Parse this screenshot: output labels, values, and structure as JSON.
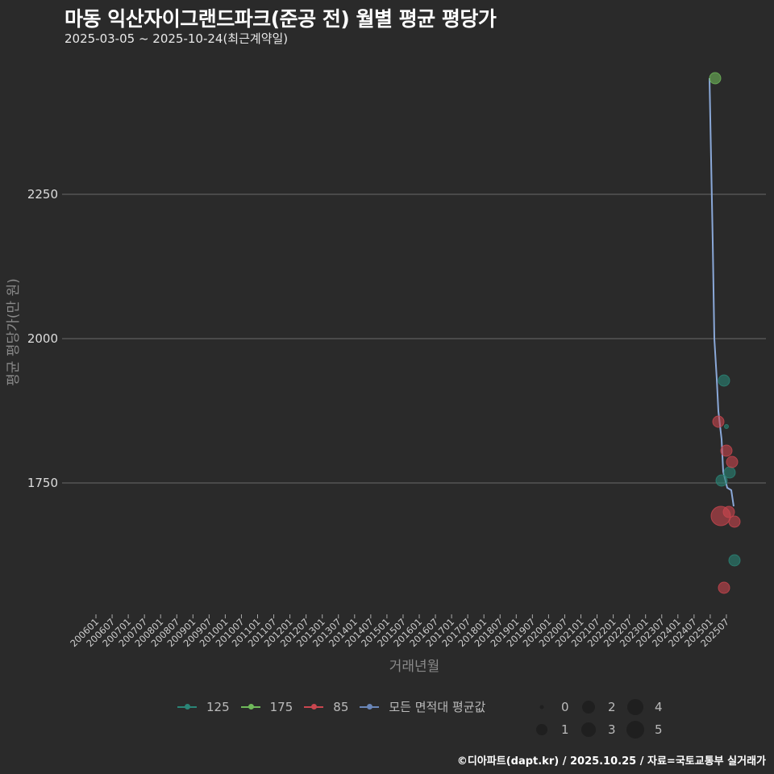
{
  "header": {
    "title": "마동 익산자이그랜드파크(준공 전) 월별 평균 평당가",
    "subtitle": "2025-03-05 ~ 2025-10-24(최근계약일)"
  },
  "caption": "©디아파트(dapt.kr) / 2025.10.25 / 자료=국토교통부 실거래가",
  "colors": {
    "background": "#2a2a2a",
    "grid": "#6a6a6a",
    "s125": "#2a8577",
    "s175": "#6fb95a",
    "s85": "#c9464f",
    "avg": "#8aa8d8"
  },
  "legend": {
    "series": [
      {
        "label": "125",
        "color": "#2a8577"
      },
      {
        "label": "175",
        "color": "#6fb95a"
      },
      {
        "label": "85",
        "color": "#c9464f"
      },
      {
        "label": "모든 면적대 평균값",
        "color": "#6a86b8"
      }
    ],
    "sizes": [
      "0",
      "1",
      "2",
      "3",
      "4",
      "5"
    ]
  },
  "chart_data": {
    "type": "scatter",
    "title": "마동 익산자이그랜드파크(준공 전) 월별 평균 평당가",
    "subtitle": "2025-03-05 ~ 2025-10-24(최근계약일)",
    "xlabel": "거래년월",
    "ylabel": "평균 평당가(만 원)",
    "y_ticks": [
      1750,
      2000,
      2250
    ],
    "ylim": [
      1530,
      2480
    ],
    "x_ticks": [
      "200601",
      "200607",
      "200701",
      "200707",
      "200801",
      "200807",
      "200901",
      "200907",
      "201001",
      "201007",
      "201101",
      "201107",
      "201201",
      "201207",
      "201301",
      "201307",
      "201401",
      "201407",
      "201501",
      "201507",
      "201601",
      "201607",
      "201701",
      "201707",
      "201801",
      "201807",
      "201901",
      "201907",
      "202001",
      "202007",
      "202101",
      "202107",
      "202201",
      "202207",
      "202301",
      "202307",
      "202401",
      "202407",
      "202501",
      "202507"
    ],
    "grid": true,
    "legend_position": "bottom",
    "series": [
      {
        "name": "175",
        "points": [
          {
            "x": "202503",
            "y": 2451,
            "size": 2
          }
        ]
      },
      {
        "name": "125",
        "points": [
          {
            "x": "202506",
            "y": 1927,
            "size": 2
          },
          {
            "x": "202507",
            "y": 1848,
            "size": 0
          },
          {
            "x": "202508",
            "y": 1768,
            "size": 2
          },
          {
            "x": "202505",
            "y": 1754,
            "size": 2
          },
          {
            "x": "202510",
            "y": 1616,
            "size": 2
          }
        ]
      },
      {
        "name": "85",
        "points": [
          {
            "x": "202504",
            "y": 1856,
            "size": 2
          },
          {
            "x": "202507",
            "y": 1806,
            "size": 2
          },
          {
            "x": "202509",
            "y": 1786,
            "size": 2
          },
          {
            "x": "202505",
            "y": 1693,
            "size": 5
          },
          {
            "x": "202508",
            "y": 1700,
            "size": 2
          },
          {
            "x": "202510",
            "y": 1683,
            "size": 2
          },
          {
            "x": "202506",
            "y": 1568,
            "size": 2
          }
        ]
      },
      {
        "name": "모든 면적대 평균값",
        "type": "line",
        "points": [
          {
            "x": "202503",
            "y": 2451
          },
          {
            "x": "202504",
            "y": 1925
          },
          {
            "x": "202505",
            "y": 1870
          },
          {
            "x": "202506",
            "y": 1850
          },
          {
            "x": "202507",
            "y": 1780
          },
          {
            "x": "202508",
            "y": 1752
          },
          {
            "x": "202509",
            "y": 1740
          },
          {
            "x": "202510",
            "y": 1710
          }
        ]
      }
    ]
  }
}
